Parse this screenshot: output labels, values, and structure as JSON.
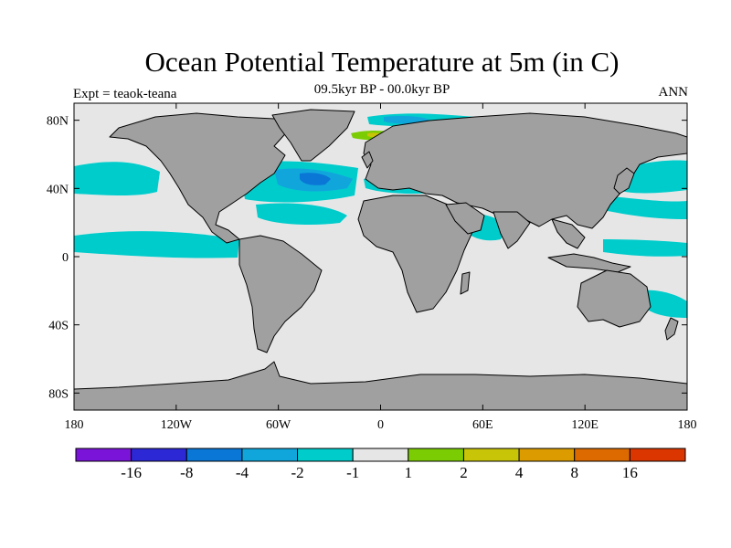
{
  "title": "Ocean Potential Temperature at 5m (in C)",
  "subtitle": "09.5kyr BP - 00.0kyr BP",
  "left_label": "Expt = teaok-teana",
  "right_label": "ANN",
  "map": {
    "projection": "cylindrical-equidistant",
    "lon_range": [
      -180,
      180
    ],
    "lat_range": [
      -90,
      90
    ],
    "ocean_color": "#e6e6e6",
    "land_color": "#a0a0a0",
    "coast_color": "#000000"
  },
  "lat_ticks": [
    {
      "value": 80,
      "label": "80N"
    },
    {
      "value": 40,
      "label": "40N"
    },
    {
      "value": 0,
      "label": "0"
    },
    {
      "value": -40,
      "label": "40S"
    },
    {
      "value": -80,
      "label": "80S"
    }
  ],
  "lon_ticks": [
    {
      "value": -180,
      "label": "180"
    },
    {
      "value": -120,
      "label": "120W"
    },
    {
      "value": -60,
      "label": "60W"
    },
    {
      "value": 0,
      "label": "0"
    },
    {
      "value": 60,
      "label": "60E"
    },
    {
      "value": 120,
      "label": "120E"
    },
    {
      "value": 180,
      "label": "180"
    }
  ],
  "colorbar": {
    "colors": [
      "#7a14d8",
      "#2c28d6",
      "#0a76d6",
      "#10a6dc",
      "#00cccc",
      "#e6e6e6",
      "#7ccc04",
      "#c8c408",
      "#dc9c00",
      "#dc6a00",
      "#dc3600"
    ],
    "labels": [
      "-16",
      "-8",
      "-4",
      "-2",
      "-1",
      "1",
      "2",
      "4",
      "8",
      "16"
    ]
  }
}
